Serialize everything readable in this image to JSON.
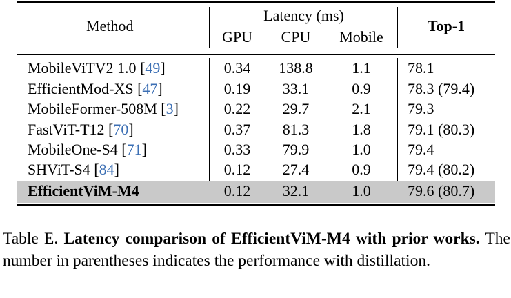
{
  "table": {
    "headers": {
      "method": "Method",
      "latency_group": "Latency (ms)",
      "gpu": "GPU",
      "cpu": "CPU",
      "mobile": "Mobile",
      "top1": "Top-1"
    },
    "rows": [
      {
        "method": "MobileViTV2 1.0 ",
        "ref": "49",
        "gpu": "0.34",
        "cpu": "138.8",
        "mobile": "1.1",
        "top1": "78.1"
      },
      {
        "method": "EfficientMod-XS ",
        "ref": "47",
        "gpu": "0.19",
        "cpu": "33.1",
        "mobile": "0.9",
        "top1": "78.3 (79.4)"
      },
      {
        "method": "MobileFormer-508M ",
        "ref": "3",
        "gpu": "0.22",
        "cpu": "29.7",
        "mobile": "2.1",
        "top1": "79.3"
      },
      {
        "method": "FastViT-T12 ",
        "ref": "70",
        "gpu": "0.37",
        "cpu": "81.3",
        "mobile": "1.8",
        "top1": "79.1 (80.3)"
      },
      {
        "method": "MobileOne-S4 ",
        "ref": "71",
        "gpu": "0.33",
        "cpu": "79.9",
        "mobile": "1.0",
        "top1": "79.4"
      },
      {
        "method": "SHViT-S4 ",
        "ref": "84",
        "gpu": "0.12",
        "cpu": "27.4",
        "mobile": "0.9",
        "top1": "79.4 (80.2)"
      },
      {
        "method": "EfficientViM-M4",
        "ref": "",
        "gpu": "0.12",
        "cpu": "32.1",
        "mobile": "1.0",
        "top1": "79.6 (80.7)",
        "highlight": true
      }
    ]
  },
  "caption": {
    "label": "Table E. ",
    "bold": "Latency comparison of EfficientViM-M4 with prior works.",
    "rest": " The number in parentheses indicates the performance with distillation."
  }
}
